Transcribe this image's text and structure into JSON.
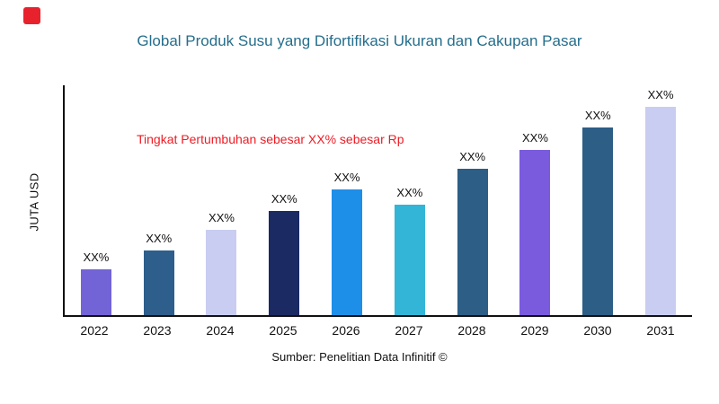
{
  "brand": {
    "logo_color": "#E8222C"
  },
  "colors": {
    "title": "#256E8C",
    "annotation": "#ED1C24",
    "axis": "#111111"
  },
  "chart_data": {
    "type": "bar",
    "title": "Global Produk Susu yang Difortifikasi Ukuran dan Cakupan Pasar",
    "ylabel": "JUTA USD",
    "xlabel": "",
    "annotation": "Tingkat Pertumbuhan sebesar XX% sebesar Rp",
    "source": "Sumber: Penelitian Data Infinitif ©",
    "categories": [
      "2022",
      "2023",
      "2024",
      "2025",
      "2026",
      "2027",
      "2028",
      "2029",
      "2030",
      "2031"
    ],
    "bar_labels": [
      "XX%",
      "XX%",
      "XX%",
      "XX%",
      "XX%",
      "XX%",
      "XX%",
      "XX%",
      "XX%",
      "XX%"
    ],
    "relative_heights": [
      20,
      28,
      37,
      45.5,
      54.5,
      48,
      63.5,
      72,
      81.5,
      90.5
    ],
    "bar_colors": [
      "#7264D6",
      "#2E5E8C",
      "#C9CDF1",
      "#1B2A63",
      "#1E8FE8",
      "#33B5D8",
      "#2C5E86",
      "#7A5BDE",
      "#2C5E86",
      "#C9CDF1"
    ],
    "grid": false,
    "legend": null
  }
}
